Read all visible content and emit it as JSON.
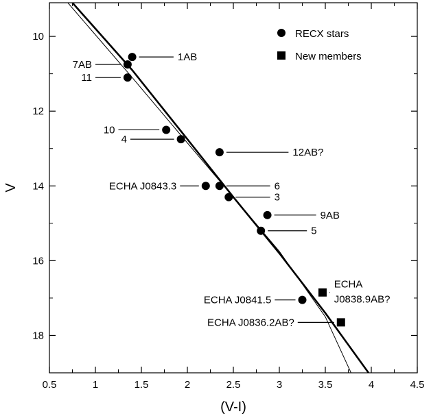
{
  "chart_data": {
    "type": "scatter",
    "xlabel": "(V-I)",
    "ylabel": "V",
    "xlim": [
      0.5,
      4.5
    ],
    "ylim": [
      19,
      9.1
    ],
    "y_inverted": true,
    "xticks": [
      0.5,
      1,
      1.5,
      2,
      2.5,
      3,
      3.5,
      4,
      4.5
    ],
    "yticks": [
      10,
      12,
      14,
      16,
      18
    ],
    "xtick_labels": [
      "0.5",
      "1",
      "1.5",
      "2",
      "2.5",
      "3",
      "3.5",
      "4",
      "4.5"
    ],
    "ytick_labels": [
      "10",
      "12",
      "14",
      "16",
      "18"
    ],
    "grid": false,
    "legend_position": "top-right",
    "series": [
      {
        "name": "RECX stars",
        "marker": "circle",
        "points": [
          {
            "x": 1.4,
            "y": 10.55,
            "label": "1AB",
            "label_side": "right",
            "label_x": 1.85,
            "label_y": 10.55
          },
          {
            "x": 1.35,
            "y": 10.75,
            "label": "7AB",
            "label_side": "left",
            "label_x": 1.0,
            "label_y": 10.75
          },
          {
            "x": 1.35,
            "y": 11.1,
            "label": "11",
            "label_side": "left",
            "label_x": 1.0,
            "label_y": 11.1
          },
          {
            "x": 1.77,
            "y": 12.5,
            "label": "10",
            "label_side": "left",
            "label_x": 1.25,
            "label_y": 12.5
          },
          {
            "x": 1.93,
            "y": 12.75,
            "label": "4",
            "label_side": "left",
            "label_x": 1.38,
            "label_y": 12.75
          },
          {
            "x": 2.35,
            "y": 13.1,
            "label": "12AB?",
            "label_side": "right",
            "label_x": 3.1,
            "label_y": 13.1
          },
          {
            "x": 2.2,
            "y": 14.0,
            "label": "ECHA J0843.3",
            "label_side": "left",
            "label_x": 1.92,
            "label_y": 14.0
          },
          {
            "x": 2.35,
            "y": 14.0,
            "label": "6",
            "label_side": "right",
            "label_x": 2.9,
            "label_y": 14.0
          },
          {
            "x": 2.45,
            "y": 14.3,
            "label": "3",
            "label_side": "right",
            "label_x": 2.9,
            "label_y": 14.3
          },
          {
            "x": 2.87,
            "y": 14.78,
            "label": "9AB",
            "label_side": "right",
            "label_x": 3.4,
            "label_y": 14.78
          },
          {
            "x": 2.8,
            "y": 15.2,
            "label": "5",
            "label_side": "right",
            "label_x": 3.3,
            "label_y": 15.2
          },
          {
            "x": 3.25,
            "y": 17.05,
            "label": "ECHA J0841.5",
            "label_side": "left",
            "label_x": 2.95,
            "label_y": 17.05
          }
        ]
      },
      {
        "name": "New members",
        "marker": "square",
        "points": [
          {
            "x": 3.47,
            "y": 16.85,
            "label": "ECHA J0838.9AB?",
            "label_side": "right",
            "label_x": 3.55,
            "label_y": 16.85
          },
          {
            "x": 3.67,
            "y": 17.65,
            "label": "ECHA J0836.2AB?",
            "label_side": "left",
            "label_x": 3.2,
            "label_y": 17.65
          }
        ]
      }
    ],
    "isochrones": [
      {
        "style": "thick",
        "points": [
          [
            0.75,
            9.1
          ],
          [
            1.4,
            10.9
          ],
          [
            2.0,
            12.75
          ],
          [
            2.5,
            14.3
          ],
          [
            3.0,
            15.8
          ],
          [
            3.5,
            17.4
          ],
          [
            3.97,
            19.0
          ]
        ]
      },
      {
        "style": "thin",
        "points": [
          [
            0.7,
            9.1
          ],
          [
            1.4,
            11.1
          ],
          [
            2.0,
            12.85
          ],
          [
            2.5,
            14.3
          ],
          [
            3.0,
            15.75
          ],
          [
            3.5,
            17.5
          ],
          [
            3.78,
            19.0
          ]
        ]
      }
    ]
  }
}
